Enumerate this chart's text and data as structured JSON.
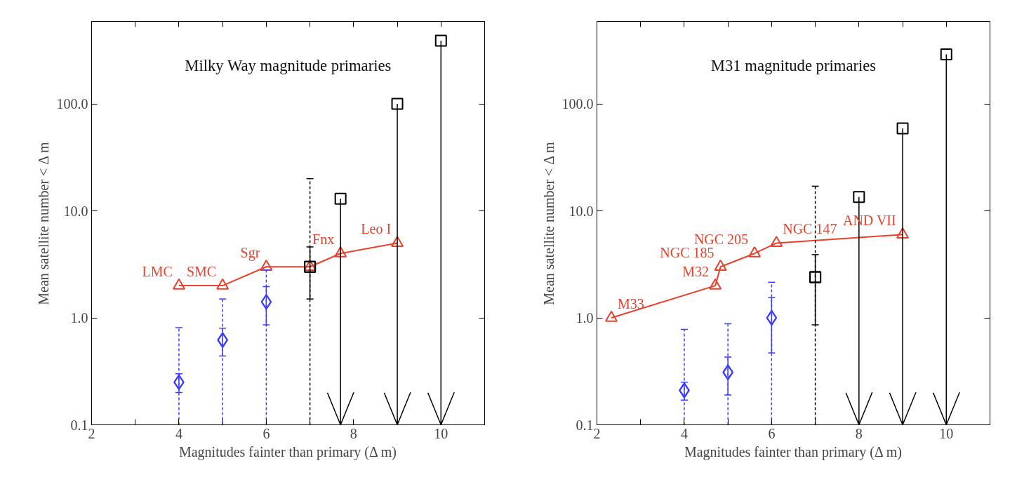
{
  "chart_data": [
    {
      "type": "line",
      "title": "Milky Way magnitude primaries",
      "xlabel": "Magnitudes fainter than primary (Δ m)",
      "ylabel": "Mean satellite number < Δ m",
      "log": "y",
      "xlim": [
        2,
        11
      ],
      "ylim": [
        0.1,
        590
      ],
      "xticks": [
        2,
        {
          "value": 3,
          "label": null
        },
        4,
        {
          "value": 5,
          "label": null
        },
        6,
        {
          "value": 7,
          "label": null
        },
        8,
        {
          "value": 9,
          "label": null
        },
        10
      ],
      "yticks": [
        {
          "value": 0.1,
          "label": "0.1"
        },
        {
          "value": 1,
          "label": "1.0"
        },
        {
          "value": 10,
          "label": "10.0"
        },
        {
          "value": 100,
          "label": "100.0"
        }
      ],
      "series": [
        {
          "color": "#e8412c",
          "marker": "triangle",
          "line_style": "solid",
          "x": [
            4,
            5,
            6,
            7,
            7.7,
            9
          ],
          "values": [
            2,
            2,
            3,
            3,
            4,
            5
          ]
        },
        {
          "type": "scatter",
          "color": "#3b3bff",
          "marker": "diamond",
          "line_style": "solid",
          "x": [
            4,
            5,
            6
          ],
          "values": [
            0.25,
            0.62,
            1.41
          ],
          "errors": [
            [
              0.2,
              0.3
            ],
            [
              0.44,
              0.8
            ],
            [
              0.86,
              1.96
            ]
          ]
        },
        {
          "type": "scatter",
          "color": "#3b3bff",
          "marker": "diamond",
          "line_style": "dashed",
          "x": [
            4,
            5,
            6
          ],
          "values": [
            0.25,
            0.62,
            1.41
          ],
          "errors": [
            [
              0.1,
              0.81
            ],
            [
              0.1,
              1.5
            ],
            [
              0.1,
              2.8
            ]
          ]
        },
        {
          "type": "scatter",
          "color": "#000000",
          "marker": "square",
          "line_style": "solid",
          "x": [
            7
          ],
          "values": [
            3
          ],
          "errors": [
            [
              1.5,
              4.6
            ]
          ]
        },
        {
          "type": "scatter",
          "color": "#000000",
          "marker": "square",
          "line_style": "dashed",
          "x": [
            7
          ],
          "values": [
            3
          ],
          "errors": [
            [
              0.1,
              20
            ]
          ]
        },
        {
          "type": "scatter",
          "color": "#000000",
          "marker": "square",
          "line_style": "solid",
          "x": [
            7.7,
            9,
            10
          ],
          "values": [
            13,
            100,
            390
          ],
          "errors": [
            [
              0.1,
              13
            ],
            [
              0.1,
              100
            ],
            [
              0.1,
              390
            ]
          ]
        }
      ],
      "annotations": [
        {
          "text": "LMC",
          "x": 4,
          "y": 2
        },
        {
          "text": "SMC",
          "x": 5,
          "y": 2
        },
        {
          "text": "Sgr",
          "x": 6,
          "y": 3
        },
        {
          "text": "Fnx",
          "x": 7.7,
          "y": 4
        },
        {
          "text": "Leo I",
          "x": 9,
          "y": 5
        }
      ]
    },
    {
      "type": "line",
      "title": "M31 magnitude primaries",
      "xlabel": "Magnitudes fainter than primary (Δ m)",
      "ylabel": "Mean satellite number < Δ m",
      "log": "y",
      "xlim": [
        2,
        11
      ],
      "ylim": [
        0.1,
        590
      ],
      "xticks": [
        2,
        {
          "value": 3,
          "label": null
        },
        4,
        {
          "value": 5,
          "label": null
        },
        6,
        {
          "value": 7,
          "label": null
        },
        8,
        {
          "value": 9,
          "label": null
        },
        10
      ],
      "yticks": [
        {
          "value": 0.1,
          "label": "0.1"
        },
        {
          "value": 1,
          "label": "1.0"
        },
        {
          "value": 10,
          "label": "10.0"
        },
        {
          "value": 100,
          "label": "100.0"
        }
      ],
      "series": [
        {
          "color": "#e8412c",
          "marker": "triangle",
          "line_style": "solid",
          "x": [
            2.33,
            4.71,
            4.83,
            5.61,
            6.11,
            9
          ],
          "values": [
            1,
            2,
            3,
            4,
            5,
            6
          ]
        },
        {
          "type": "scatter",
          "color": "#3b3bff",
          "marker": "diamond",
          "line_style": "solid",
          "x": [
            4,
            5,
            6
          ],
          "values": [
            0.21,
            0.31,
            1.0
          ],
          "errors": [
            [
              0.17,
              0.25
            ],
            [
              0.19,
              0.43
            ],
            [
              0.47,
              1.55
            ]
          ]
        },
        {
          "type": "scatter",
          "color": "#3b3bff",
          "marker": "diamond",
          "line_style": "dashed",
          "x": [
            4,
            5,
            6
          ],
          "values": [
            0.21,
            0.31,
            1.0
          ],
          "errors": [
            [
              0.1,
              0.78
            ],
            [
              0.1,
              0.88
            ],
            [
              0.1,
              2.15
            ]
          ]
        },
        {
          "type": "scatter",
          "color": "#000000",
          "marker": "square",
          "line_style": "solid",
          "x": [
            7
          ],
          "values": [
            2.4
          ],
          "errors": [
            [
              0.86,
              3.9
            ]
          ]
        },
        {
          "type": "scatter",
          "color": "#000000",
          "marker": "square",
          "line_style": "dashed",
          "x": [
            7
          ],
          "values": [
            2.4
          ],
          "errors": [
            [
              0.1,
              17
            ]
          ]
        },
        {
          "type": "scatter",
          "color": "#000000",
          "marker": "square",
          "line_style": "solid",
          "x": [
            8,
            9,
            10
          ],
          "values": [
            13.5,
            59,
            290
          ],
          "errors": [
            [
              0.1,
              13.5
            ],
            [
              0.1,
              59
            ],
            [
              0.1,
              290
            ]
          ]
        }
      ],
      "annotations": [
        {
          "text": "M33",
          "x": 2.33,
          "y": 1
        },
        {
          "text": "M32",
          "x": 4.71,
          "y": 2
        },
        {
          "text": "NGC 185",
          "x": 4.83,
          "y": 3
        },
        {
          "text": "NGC 205",
          "x": 5.61,
          "y": 4
        },
        {
          "text": "NGC 147",
          "x": 6.11,
          "y": 5
        },
        {
          "text": "AND VII",
          "x": 9,
          "y": 6
        }
      ]
    }
  ]
}
